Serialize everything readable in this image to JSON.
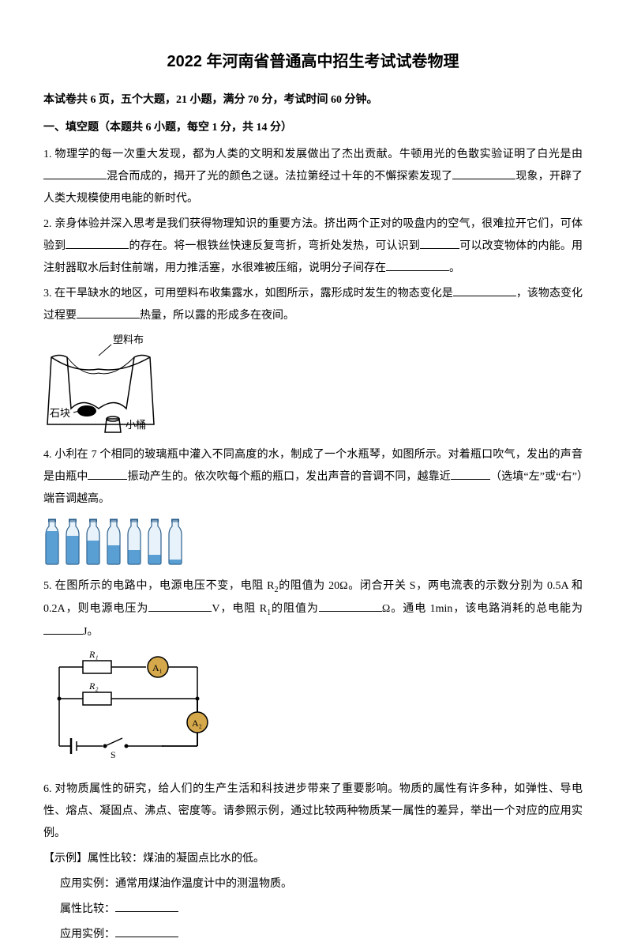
{
  "title": "2022 年河南省普通高中招生考试试卷物理",
  "subtitle": "本试卷共 6 页，五个大题，21 小题，满分 70 分，考试时间 60 分钟。",
  "section1_header": "一、填空题（本题共 6 小题，每空 1 分，共 14 分）",
  "q1": {
    "text_a": "1. 物理学的每一次重大发现，都为人类的文明和发展做出了杰出贡献。牛顿用光的色散实验证明了白光是由",
    "text_b": "混合而成的，揭开了光的颜色之谜。法拉第经过十年的不懈探索发现了",
    "text_c": "现象，开辟了人类大规模使用电能的新时代。"
  },
  "q2": {
    "text_a": "2. 亲身体验并深入思考是我们获得物理知识的重要方法。挤出两个正对的吸盘内的空气，很难拉开它们，可体验到",
    "text_b": "的存在。将一根铁丝快速反复弯折，弯折处发热，可认识到",
    "text_c": "可以改变物体的内能。用注射器取水后封住前端，用力推活塞，水很难被压缩，说明分子间存在",
    "text_d": "。"
  },
  "q3": {
    "text_a": "3. 在干旱缺水的地区，可用塑料布收集露水，如图所示，露形成时发生的物态变化是",
    "text_b": "，该物态变化过程要",
    "text_c": "热量，所以露的形成多在夜间。",
    "label_plastic": "塑料布",
    "label_stone": "石块",
    "label_bucket": "小桶"
  },
  "q4": {
    "text_a": "4. 小利在 7 个相同的玻璃瓶中灌入不同高度的水，制成了一个水瓶琴，如图所示。对着瓶口吹气，发出的声音是由瓶中",
    "text_b": "振动产生的。依次吹每个瓶的瓶口，发出声音的音调不同，越靠近",
    "text_c": "（选填“左”或“右”）端音调越高。",
    "bottle_water_heights": [
      42,
      36,
      30,
      24,
      18,
      12,
      6
    ],
    "bottle_color": "#5a9fd4",
    "bottle_outline": "#2c5f8d"
  },
  "q5": {
    "text_a": "5. 在图所示的电路中，电源电压不变，电阻 R",
    "text_b": "的阻值为 20Ω。闭合开关 S，两电流表的示数分别为 0.5A 和 0.2A，则电源电压为",
    "text_c": "V，电阻 R",
    "text_d": "的阻值为",
    "text_e": "Ω。通电 1min，该电路消耗的总电能为",
    "text_f": "J。",
    "r1_label": "R₁",
    "r2_label": "R₂",
    "a1_label": "A₁",
    "a2_label": "A₂",
    "s_label": "S",
    "circuit_stroke": "#000000",
    "meter_fill": "#d4a84b"
  },
  "q6": {
    "text_a": "6. 对物质属性的研究，给人们的生产生活和科技进步带来了重要影响。物质的属性有许多种，如弹性、导电性、熔点、凝固点、沸点、密度等。请参照示例，通过比较两种物质某一属性的差异，举出一个对应的应用实例。",
    "example_label": "【示例】属性比较：煤油的凝固点比水的低。",
    "example_use": "应用实例：通常用煤油作温度计中的测温物质。",
    "attr_label": "属性比较：",
    "app_label": "应用实例："
  }
}
